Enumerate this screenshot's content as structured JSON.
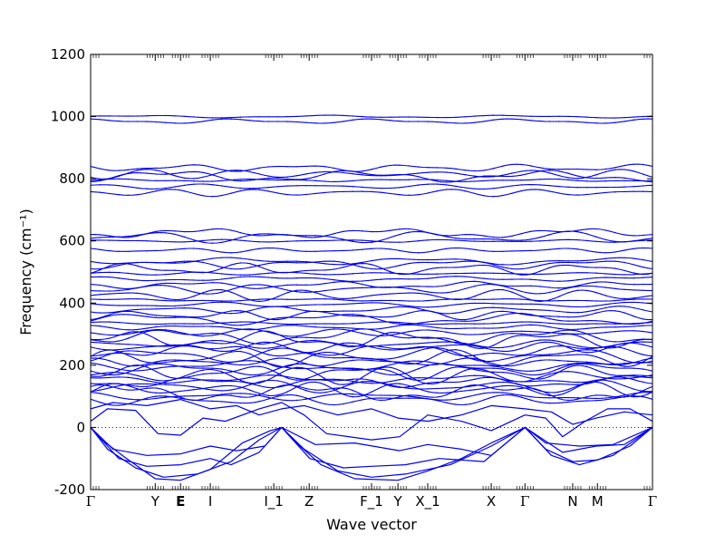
{
  "chart_data": {
    "type": "line",
    "title": "",
    "xlabel": "Wave vector",
    "ylabel": "Frequency (cm⁻¹)",
    "ylim": [
      -200,
      1200
    ],
    "yticks": [
      -200,
      0,
      200,
      400,
      600,
      800,
      1000,
      1200
    ],
    "xlim": [
      0,
      1
    ],
    "grid": false,
    "legend": "none",
    "line_color": "#0000ee",
    "zero_line": "dotted",
    "high_symmetry_points": [
      {
        "label": "Γ",
        "x": 0.0,
        "bold": false
      },
      {
        "label": "Y",
        "x": 0.115,
        "bold": false
      },
      {
        "label": "E",
        "x": 0.16,
        "bold": true
      },
      {
        "label": "I",
        "x": 0.213,
        "bold": false
      },
      {
        "label": "I_1",
        "x": 0.326,
        "bold": false
      },
      {
        "label": "Z",
        "x": 0.389,
        "bold": false
      },
      {
        "label": "F_1",
        "x": 0.5,
        "bold": false
      },
      {
        "label": "Y",
        "x": 0.547,
        "bold": false
      },
      {
        "label": "X_1",
        "x": 0.6,
        "bold": false
      },
      {
        "label": "X",
        "x": 0.713,
        "bold": false
      },
      {
        "label": "Γ",
        "x": 0.773,
        "bold": false
      },
      {
        "label": "N",
        "x": 0.858,
        "bold": false
      },
      {
        "label": "M",
        "x": 0.902,
        "bold": false
      },
      {
        "label": "Γ",
        "x": 1.0,
        "bold": false
      }
    ],
    "optical_band_levels": [
      1000,
      985,
      835,
      815,
      808,
      795,
      775,
      755,
      625,
      612,
      600,
      570,
      535,
      525,
      510,
      495,
      478,
      458,
      445,
      425,
      410,
      395,
      378,
      362,
      348,
      335,
      322,
      305,
      292,
      282,
      268,
      258,
      246,
      232,
      222,
      210,
      198,
      188,
      176,
      166,
      155,
      145,
      132,
      122,
      112,
      100,
      88
    ],
    "low_bands": [
      [
        [
          0.0,
          0
        ],
        [
          0.02,
          -40
        ],
        [
          0.06,
          -95
        ],
        [
          0.115,
          -165
        ],
        [
          0.16,
          -170
        ],
        [
          0.213,
          -135
        ],
        [
          0.27,
          -50
        ],
        [
          0.32,
          -10
        ],
        [
          0.34,
          0
        ],
        [
          0.36,
          -40
        ],
        [
          0.41,
          -120
        ],
        [
          0.47,
          -165
        ],
        [
          0.547,
          -170
        ],
        [
          0.6,
          -140
        ],
        [
          0.66,
          -100
        ],
        [
          0.713,
          -50
        ],
        [
          0.773,
          0
        ],
        [
          0.81,
          -70
        ],
        [
          0.858,
          -110
        ],
        [
          0.902,
          -105
        ],
        [
          0.96,
          -60
        ],
        [
          1.0,
          0
        ]
      ],
      [
        [
          0.0,
          0
        ],
        [
          0.03,
          -70
        ],
        [
          0.08,
          -130
        ],
        [
          0.13,
          -160
        ],
        [
          0.19,
          -150
        ],
        [
          0.25,
          -110
        ],
        [
          0.3,
          -40
        ],
        [
          0.34,
          0
        ],
        [
          0.38,
          -70
        ],
        [
          0.44,
          -140
        ],
        [
          0.5,
          -160
        ],
        [
          0.56,
          -150
        ],
        [
          0.64,
          -120
        ],
        [
          0.713,
          -60
        ],
        [
          0.773,
          0
        ],
        [
          0.82,
          -90
        ],
        [
          0.87,
          -120
        ],
        [
          0.93,
          -90
        ],
        [
          1.0,
          0
        ]
      ],
      [
        [
          0.0,
          0
        ],
        [
          0.05,
          -100
        ],
        [
          0.1,
          -125
        ],
        [
          0.16,
          -120
        ],
        [
          0.213,
          -100
        ],
        [
          0.25,
          -120
        ],
        [
          0.3,
          -80
        ],
        [
          0.34,
          0
        ],
        [
          0.39,
          -100
        ],
        [
          0.45,
          -130
        ],
        [
          0.5,
          -125
        ],
        [
          0.56,
          -120
        ],
        [
          0.62,
          -100
        ],
        [
          0.7,
          -110
        ],
        [
          0.773,
          0
        ],
        [
          0.84,
          -80
        ],
        [
          0.9,
          -60
        ],
        [
          0.95,
          -55
        ],
        [
          1.0,
          0
        ]
      ],
      [
        [
          0.0,
          0
        ],
        [
          0.04,
          -70
        ],
        [
          0.1,
          -90
        ],
        [
          0.16,
          -85
        ],
        [
          0.213,
          -60
        ],
        [
          0.26,
          -75
        ],
        [
          0.31,
          -60
        ],
        [
          0.34,
          0
        ],
        [
          0.4,
          -55
        ],
        [
          0.47,
          -50
        ],
        [
          0.55,
          -75
        ],
        [
          0.6,
          -55
        ],
        [
          0.66,
          -70
        ],
        [
          0.713,
          -90
        ],
        [
          0.773,
          0
        ],
        [
          0.81,
          -50
        ],
        [
          0.87,
          -60
        ],
        [
          0.93,
          -55
        ],
        [
          1.0,
          0
        ]
      ],
      [
        [
          0.0,
          20
        ],
        [
          0.03,
          60
        ],
        [
          0.08,
          55
        ],
        [
          0.12,
          -20
        ],
        [
          0.16,
          -25
        ],
        [
          0.2,
          30
        ],
        [
          0.24,
          20
        ],
        [
          0.3,
          60
        ],
        [
          0.34,
          80
        ],
        [
          0.38,
          40
        ],
        [
          0.42,
          -20
        ],
        [
          0.5,
          -40
        ],
        [
          0.55,
          -30
        ],
        [
          0.6,
          40
        ],
        [
          0.66,
          20
        ],
        [
          0.713,
          -10
        ],
        [
          0.773,
          40
        ],
        [
          0.81,
          30
        ],
        [
          0.84,
          -30
        ],
        [
          0.88,
          20
        ],
        [
          0.92,
          60
        ],
        [
          0.96,
          60
        ],
        [
          1.0,
          20
        ]
      ],
      [
        [
          0.0,
          60
        ],
        [
          0.04,
          80
        ],
        [
          0.1,
          70
        ],
        [
          0.16,
          90
        ],
        [
          0.213,
          60
        ],
        [
          0.26,
          70
        ],
        [
          0.3,
          40
        ],
        [
          0.34,
          60
        ],
        [
          0.38,
          70
        ],
        [
          0.44,
          40
        ],
        [
          0.5,
          60
        ],
        [
          0.547,
          30
        ],
        [
          0.6,
          20
        ],
        [
          0.66,
          40
        ],
        [
          0.713,
          70
        ],
        [
          0.773,
          60
        ],
        [
          0.82,
          50
        ],
        [
          0.858,
          10
        ],
        [
          0.9,
          30
        ],
        [
          0.95,
          50
        ],
        [
          1.0,
          40
        ]
      ]
    ]
  }
}
